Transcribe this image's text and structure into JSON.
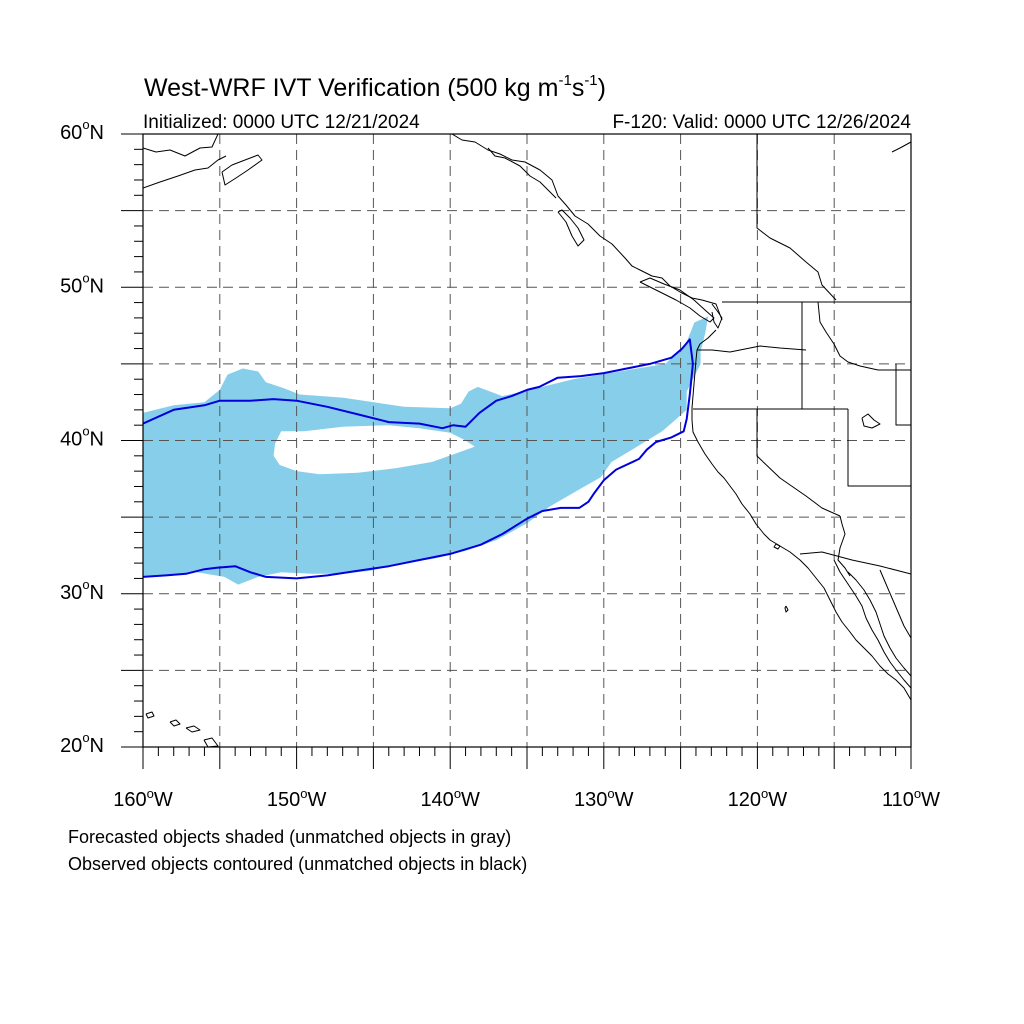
{
  "title": {
    "prefix": "West-WRF IVT Verification (500 kg m",
    "exp1": "-1",
    "mid": "s",
    "exp2": "-1",
    "suffix": ")"
  },
  "initialized": "Initialized: 0000 UTC 12/21/2024",
  "valid": "F-120: Valid: 0000 UTC 12/26/2024",
  "map": {
    "projection": "cylindrical equidistant",
    "lon_range": [
      -160,
      -110
    ],
    "lat_range": [
      20,
      60
    ],
    "grid": true,
    "colors": {
      "forecast_fill": "#87ceeb",
      "observed_contour": "#0000dd",
      "coastline": "#000000",
      "grid": "#555555"
    }
  },
  "lat_labels": [
    {
      "text": "20°N",
      "deg": "20",
      "hemi": "N",
      "lat": 20
    },
    {
      "text": "30°N",
      "deg": "30",
      "hemi": "N",
      "lat": 30
    },
    {
      "text": "40°N",
      "deg": "40",
      "hemi": "N",
      "lat": 40
    },
    {
      "text": "50°N",
      "deg": "50",
      "hemi": "N",
      "lat": 50
    },
    {
      "text": "60°N",
      "deg": "60",
      "hemi": "N",
      "lat": 60
    }
  ],
  "lon_labels": [
    {
      "text": "160°W",
      "deg": "160",
      "hemi": "W",
      "lon": -160
    },
    {
      "text": "150°W",
      "deg": "150",
      "hemi": "W",
      "lon": -150
    },
    {
      "text": "140°W",
      "deg": "140",
      "hemi": "W",
      "lon": -140
    },
    {
      "text": "130°W",
      "deg": "130",
      "hemi": "W",
      "lon": -130
    },
    {
      "text": "120°W",
      "deg": "120",
      "hemi": "W",
      "lon": -120
    },
    {
      "text": "110°W",
      "deg": "110",
      "hemi": "W",
      "lon": -110
    }
  ],
  "forecast_object": {
    "matched": true,
    "outer": [
      [
        -160,
        41.8
      ],
      [
        -158,
        42.3
      ],
      [
        -156,
        42.5
      ],
      [
        -155,
        43.3
      ],
      [
        -154.5,
        44.3
      ],
      [
        -153.5,
        44.7
      ],
      [
        -152.5,
        44.5
      ],
      [
        -152,
        43.8
      ],
      [
        -150.8,
        43.4
      ],
      [
        -149.8,
        43
      ],
      [
        -147,
        42.8
      ],
      [
        -143,
        42.2
      ],
      [
        -140,
        42.1
      ],
      [
        -139.3,
        42.4
      ],
      [
        -138.8,
        43.2
      ],
      [
        -138.2,
        43.5
      ],
      [
        -136.6,
        42.9
      ],
      [
        -134.8,
        43.3
      ],
      [
        -132,
        44
      ],
      [
        -129,
        44.5
      ],
      [
        -126,
        45
      ],
      [
        -124.7,
        46.2
      ],
      [
        -124.1,
        47.7
      ],
      [
        -123.2,
        48.1
      ],
      [
        -123.4,
        47
      ],
      [
        -123.7,
        45.8
      ],
      [
        -123.7,
        45
      ],
      [
        -124.6,
        43.2
      ],
      [
        -124.6,
        42
      ],
      [
        -125.4,
        41.3
      ],
      [
        -126.2,
        40.6
      ],
      [
        -128,
        39.5
      ],
      [
        -129.5,
        38.6
      ],
      [
        -130.2,
        37.6
      ],
      [
        -131.6,
        36.8
      ],
      [
        -133.5,
        35.7
      ],
      [
        -135,
        34.6
      ],
      [
        -137,
        33.5
      ],
      [
        -139,
        32.8
      ],
      [
        -141,
        32.3
      ],
      [
        -143,
        32
      ],
      [
        -145.2,
        31.5
      ],
      [
        -147,
        31.3
      ],
      [
        -149,
        31.3
      ],
      [
        -151,
        31.4
      ],
      [
        -152.5,
        31.1
      ],
      [
        -153.8,
        30.6
      ],
      [
        -154.7,
        31.1
      ],
      [
        -156.5,
        31.4
      ],
      [
        -158,
        31.2
      ],
      [
        -160,
        31.1
      ]
    ],
    "hole": [
      [
        -151,
        40.6
      ],
      [
        -149.5,
        40.6
      ],
      [
        -147,
        40.9
      ],
      [
        -144,
        41
      ],
      [
        -142,
        40.8
      ],
      [
        -140,
        40.5
      ],
      [
        -139,
        40
      ],
      [
        -138.4,
        39.6
      ],
      [
        -139.5,
        39.2
      ],
      [
        -141.2,
        38.6
      ],
      [
        -143.5,
        38.2
      ],
      [
        -146,
        37.9
      ],
      [
        -148.5,
        37.8
      ],
      [
        -150,
        38
      ],
      [
        -151.1,
        38.4
      ],
      [
        -151.5,
        39
      ],
      [
        -151.4,
        39.8
      ]
    ]
  },
  "observed_object": {
    "matched": true,
    "points": [
      [
        -160,
        41.1
      ],
      [
        -158,
        42
      ],
      [
        -156,
        42.3
      ],
      [
        -155,
        42.6
      ],
      [
        -153,
        42.6
      ],
      [
        -151.5,
        42.7
      ],
      [
        -150,
        42.6
      ],
      [
        -148,
        42.2
      ],
      [
        -146,
        41.7
      ],
      [
        -144,
        41.2
      ],
      [
        -142,
        41.1
      ],
      [
        -140.5,
        40.8
      ],
      [
        -139.8,
        41
      ],
      [
        -139,
        40.9
      ],
      [
        -138.1,
        41.8
      ],
      [
        -137,
        42.6
      ],
      [
        -136,
        42.9
      ],
      [
        -135,
        43.3
      ],
      [
        -134.2,
        43.5
      ],
      [
        -133,
        44.1
      ],
      [
        -131.5,
        44.2
      ],
      [
        -130,
        44.4
      ],
      [
        -128.5,
        44.7
      ],
      [
        -127,
        45
      ],
      [
        -125.6,
        45.4
      ],
      [
        -124.9,
        46
      ],
      [
        -124.4,
        46.6
      ],
      [
        -124.2,
        45
      ],
      [
        -124.4,
        43
      ],
      [
        -124.6,
        41.4
      ],
      [
        -124.8,
        40.6
      ],
      [
        -125.6,
        40.2
      ],
      [
        -126.6,
        39.9
      ],
      [
        -127.2,
        39.4
      ],
      [
        -127.7,
        38.8
      ],
      [
        -129.2,
        38.1
      ],
      [
        -130,
        37.4
      ],
      [
        -130.6,
        36.6
      ],
      [
        -131,
        36
      ],
      [
        -131.6,
        35.6
      ],
      [
        -132.8,
        35.6
      ],
      [
        -134,
        35.4
      ],
      [
        -135,
        34.9
      ],
      [
        -136.6,
        33.9
      ],
      [
        -138,
        33.2
      ],
      [
        -140,
        32.6
      ],
      [
        -142,
        32.2
      ],
      [
        -144,
        31.8
      ],
      [
        -146,
        31.5
      ],
      [
        -148,
        31.2
      ],
      [
        -150,
        31
      ],
      [
        -152,
        31.1
      ],
      [
        -153,
        31.4
      ],
      [
        -154,
        31.8
      ],
      [
        -155.2,
        31.7
      ],
      [
        -156,
        31.6
      ],
      [
        -157.2,
        31.3
      ],
      [
        -158.5,
        31.2
      ],
      [
        -160,
        31.1
      ]
    ]
  },
  "footer_lines": [
    "Forecasted objects shaded (unmatched objects in gray)",
    "Observed objects contoured (unmatched objects in black)"
  ]
}
